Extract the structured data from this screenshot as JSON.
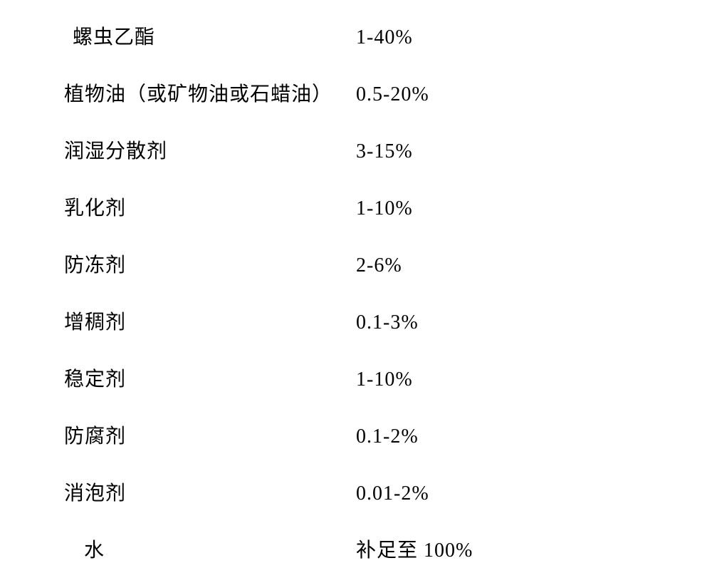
{
  "composition": {
    "rows": [
      {
        "label": "螺虫乙酯",
        "value": "1-40%",
        "label_indent": "small"
      },
      {
        "label": "植物油（或矿物油或石蜡油）",
        "value": "0.5-20%",
        "label_indent": "none"
      },
      {
        "label": "润湿分散剂",
        "value": "3-15%",
        "label_indent": "none"
      },
      {
        "label": "乳化剂",
        "value": "1-10%",
        "label_indent": "none"
      },
      {
        "label": "防冻剂",
        "value": "2-6%",
        "label_indent": "none"
      },
      {
        "label": "增稠剂",
        "value": "0.1-3%",
        "label_indent": "none"
      },
      {
        "label": "稳定剂",
        "value": "1-10%",
        "label_indent": "none"
      },
      {
        "label": "防腐剂",
        "value": "0.1-2%",
        "label_indent": "none"
      },
      {
        "label": "消泡剂",
        "value": "0.01-2%",
        "label_indent": "none"
      },
      {
        "label": "水",
        "value": "补足至 100%",
        "label_indent": "large"
      }
    ],
    "font_size": 28,
    "text_color": "#000000",
    "background_color": "#ffffff",
    "row_spacing": 40,
    "label_column_width": 410
  }
}
